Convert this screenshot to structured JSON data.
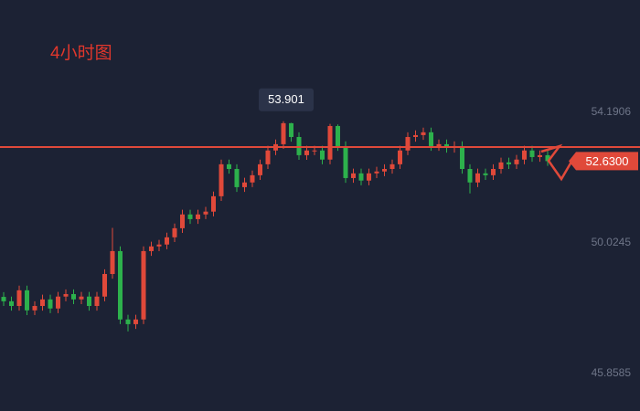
{
  "chart_data": {
    "type": "candlestick",
    "title": "4小时图",
    "series": [
      {
        "up_color": "#e0493a",
        "down_color": "#2db14c",
        "open": [
          48.3,
          48.16,
          48.01,
          48.51,
          47.87,
          48.01,
          48.22,
          47.93,
          48.31,
          48.39,
          48.22,
          48.31,
          48.01,
          48.31,
          49.03,
          49.76,
          47.58,
          47.43,
          47.58,
          49.76,
          49.91,
          49.97,
          50.2,
          50.49,
          50.93,
          50.78,
          50.93,
          51.02,
          51.51,
          52.53,
          52.38,
          51.8,
          51.95,
          52.18,
          52.53,
          52.97,
          53.17,
          53.84,
          53.4,
          52.82,
          52.97,
          52.97,
          52.68,
          53.75,
          53.11,
          52.09,
          52.24,
          52.01,
          52.24,
          52.3,
          52.38,
          52.53,
          52.97,
          53.4,
          53.46,
          53.55,
          53.11,
          53.17,
          53.05,
          53.11,
          52.38,
          51.95,
          52.24,
          52.18,
          52.38,
          52.59,
          52.53,
          52.68,
          52.97,
          52.76,
          52.82
        ],
        "high": [
          48.45,
          48.31,
          48.66,
          48.66,
          48.16,
          48.37,
          48.37,
          48.46,
          48.54,
          48.54,
          48.46,
          48.46,
          48.46,
          49.18,
          50.5,
          49.91,
          47.73,
          47.73,
          49.91,
          50.06,
          50.12,
          50.35,
          50.64,
          51.08,
          51.08,
          51.08,
          51.17,
          51.66,
          52.68,
          52.68,
          52.53,
          52.1,
          52.33,
          52.68,
          53.12,
          53.32,
          53.901,
          53.85,
          53.55,
          53.12,
          53.12,
          53.12,
          53.82,
          53.8,
          53.26,
          52.39,
          52.39,
          52.39,
          52.45,
          52.53,
          52.68,
          53.12,
          53.55,
          53.61,
          53.7,
          53.7,
          53.32,
          53.32,
          53.26,
          53.26,
          52.53,
          52.39,
          52.39,
          52.53,
          52.74,
          52.74,
          52.83,
          53.12,
          53.12,
          52.97,
          52.97
        ],
        "low": [
          48.01,
          47.86,
          47.86,
          47.72,
          47.72,
          47.86,
          47.78,
          47.78,
          48.16,
          48.07,
          48.07,
          47.86,
          47.86,
          48.16,
          48.88,
          47.43,
          47.2,
          47.28,
          47.43,
          49.61,
          49.76,
          49.82,
          50.05,
          50.34,
          50.63,
          50.63,
          50.78,
          50.87,
          51.36,
          52.23,
          51.65,
          51.65,
          51.8,
          52.03,
          52.38,
          52.82,
          53.02,
          53.25,
          52.67,
          52.67,
          52.82,
          52.53,
          52.53,
          52.96,
          51.94,
          51.94,
          51.86,
          51.86,
          52.09,
          52.15,
          52.23,
          52.38,
          52.82,
          53.25,
          53.31,
          52.96,
          52.96,
          52.9,
          52.9,
          52.23,
          51.6,
          51.8,
          52.03,
          52.03,
          52.23,
          52.38,
          52.38,
          52.53,
          52.61,
          52.61,
          52.48
        ],
        "close": [
          48.16,
          48.01,
          48.51,
          47.87,
          48.01,
          48.22,
          47.93,
          48.31,
          48.39,
          48.22,
          48.31,
          48.01,
          48.31,
          49.03,
          49.76,
          47.58,
          47.43,
          47.58,
          49.76,
          49.91,
          49.97,
          50.2,
          50.49,
          50.93,
          50.78,
          50.93,
          51.02,
          51.51,
          52.53,
          52.38,
          51.8,
          51.95,
          52.18,
          52.53,
          52.97,
          53.17,
          53.84,
          53.4,
          52.82,
          52.97,
          52.97,
          52.68,
          53.75,
          53.11,
          52.09,
          52.24,
          52.01,
          52.24,
          52.3,
          52.38,
          52.53,
          52.97,
          53.4,
          53.46,
          53.55,
          53.11,
          53.17,
          53.05,
          53.11,
          52.38,
          51.95,
          52.24,
          52.18,
          52.38,
          52.59,
          52.53,
          52.68,
          52.97,
          52.76,
          52.82,
          52.63
        ]
      }
    ],
    "ylim": [
      44.66,
      57.77
    ],
    "yticks": [
      45.8585,
      50.0245,
      54.1906
    ],
    "peak": 53.901,
    "hline": 53.08,
    "line_color": "#e0493a",
    "last_price": {
      "value": 52.63,
      "label": "52.6300"
    }
  }
}
